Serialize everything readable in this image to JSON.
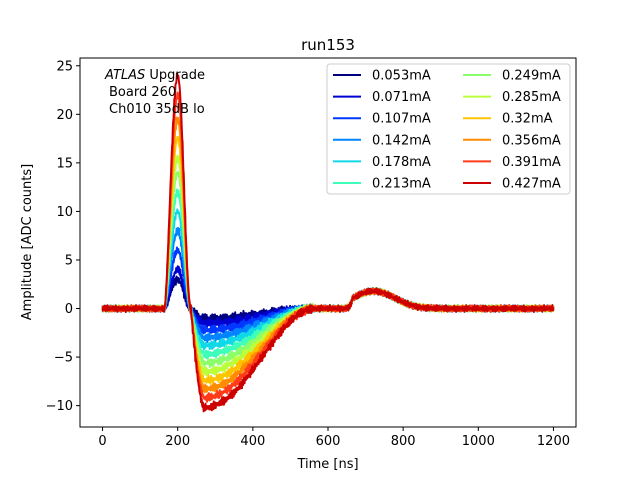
{
  "chart_data": {
    "type": "line",
    "title": "run153",
    "xlabel": "Time [ns]",
    "ylabel": "Amplitude [ADC counts]",
    "xlim": [
      -60,
      1260
    ],
    "ylim": [
      -12.2,
      25.8
    ],
    "xticks": [
      0,
      200,
      400,
      600,
      800,
      1000,
      1200
    ],
    "yticks": [
      -10,
      -5,
      0,
      5,
      10,
      15,
      20,
      25
    ],
    "xtick_labels": [
      "0",
      "200",
      "400",
      "600",
      "800",
      "1000",
      "1200"
    ],
    "ytick_labels": [
      "−10",
      "−5",
      "0",
      "5",
      "10",
      "15",
      "20",
      "25"
    ],
    "annotation": {
      "italic": "ATLAS",
      "line1_rest": " Upgrade",
      "line2": "Board 260",
      "line3": "Ch010 35dB lo"
    },
    "legend_position": "upper-right",
    "legend_columns": 2,
    "pulse_shape": {
      "rise_start_ns": 165,
      "peak_ns": 200,
      "zero_cross_ns": 235,
      "trough_ns": 272,
      "recovery_end_ns": 560,
      "bump_peak_ns": 722,
      "bump_amplitude": 1.8,
      "end_ns": 1200
    },
    "series": [
      {
        "name": "0.053mA",
        "color": "#00007f",
        "peak": 3.0,
        "trough": -1.0
      },
      {
        "name": "0.071mA",
        "color": "#0000d1",
        "peak": 4.0,
        "trough": -1.5
      },
      {
        "name": "0.107mA",
        "color": "#0038ff",
        "peak": 6.0,
        "trough": -2.2
      },
      {
        "name": "0.142mA",
        "color": "#0084ff",
        "peak": 8.0,
        "trough": -3.0
      },
      {
        "name": "0.178mA",
        "color": "#10d8e6",
        "peak": 10.0,
        "trough": -3.8
      },
      {
        "name": "0.213mA",
        "color": "#3dffba",
        "peak": 12.0,
        "trough": -4.7
      },
      {
        "name": "0.249mA",
        "color": "#8bff6b",
        "peak": 14.0,
        "trough": -5.6
      },
      {
        "name": "0.285mA",
        "color": "#baff3c",
        "peak": 15.5,
        "trough": -6.5
      },
      {
        "name": "0.32mA",
        "color": "#ffc400",
        "peak": 17.5,
        "trough": -7.4
      },
      {
        "name": "0.356mA",
        "color": "#ff8c00",
        "peak": 19.5,
        "trough": -8.3
      },
      {
        "name": "0.391mA",
        "color": "#ff3b1a",
        "peak": 22.0,
        "trough": -9.2
      },
      {
        "name": "0.427mA",
        "color": "#cc0000",
        "peak": 24.0,
        "trough": -10.2
      }
    ]
  }
}
